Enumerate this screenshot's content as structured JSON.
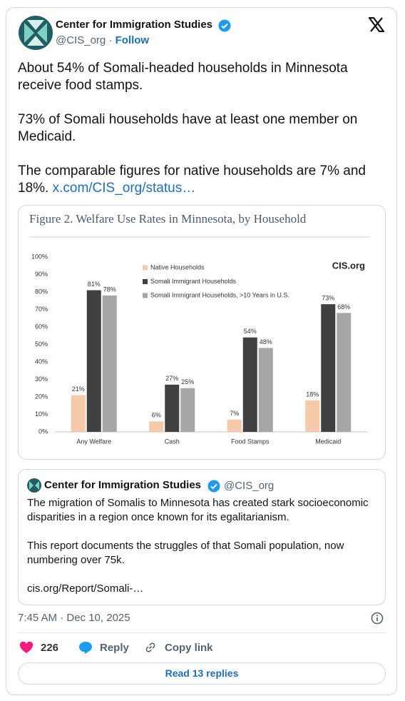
{
  "header": {
    "name": "Center for Immigration Studies",
    "handle": "@CIS_org",
    "separator": "·",
    "follow": "Follow"
  },
  "tweet": {
    "paragraphs": [
      "About 54% of Somali-headed households in Minnesota receive food stamps.",
      "73% of Somali households have at least one member on Medicaid.",
      "The comparable figures for native households are 7% and 18%."
    ],
    "link": "x.com/CIS_org/status…"
  },
  "chart_data": {
    "type": "bar",
    "title": "Figure 2. Welfare Use Rates in Minnesota, by Household",
    "watermark": "CIS.org",
    "categories": [
      "Any Welfare",
      "Cash",
      "Food Stamps",
      "Medicaid"
    ],
    "series": [
      {
        "name": "Native Households",
        "color": "#f6c9a8",
        "values": [
          21,
          6,
          7,
          18
        ],
        "value_labels": [
          "21%",
          "6%",
          "7%",
          "18%"
        ]
      },
      {
        "name": "Somali Immigrant Households",
        "color": "#404040",
        "values": [
          81,
          27,
          54,
          73
        ],
        "value_labels": [
          "81%",
          "27%",
          "54%",
          "73%"
        ]
      },
      {
        "name": "Somali Immigrant Households, >10 Years in U.S.",
        "color": "#a6a6a6",
        "values": [
          78,
          25,
          48,
          68
        ],
        "value_labels": [
          "78%",
          "25%",
          "48%",
          "68%"
        ]
      }
    ],
    "ylim": [
      0,
      100
    ],
    "yticks": [
      {
        "value": 0,
        "label": "0%"
      },
      {
        "value": 10,
        "label": "10%"
      },
      {
        "value": 20,
        "label": "20%"
      },
      {
        "value": 30,
        "label": "30%"
      },
      {
        "value": 40,
        "label": "40%"
      },
      {
        "value": 50,
        "label": "50%"
      },
      {
        "value": 60,
        "label": "60%"
      },
      {
        "value": 70,
        "label": "70%"
      },
      {
        "value": 80,
        "label": "80%"
      },
      {
        "value": 90,
        "label": "90%"
      },
      {
        "value": 100,
        "label": "100%"
      }
    ],
    "grid": false,
    "legend": "top"
  },
  "quote": {
    "name": "Center for Immigration Studies",
    "handle": "@CIS_org",
    "paragraphs": [
      "The migration of Somalis to Minnesota has created stark socioeconomic disparities in a region once known for its egalitarianism.",
      "This report documents the struggles of that Somali population, now numbering over 75k."
    ],
    "link": "cis.org/Report/Somali-…"
  },
  "footer": {
    "timestamp": "7:45 AM · Dec 10, 2025",
    "likes": 226,
    "reply": "Reply",
    "copy_link": "Copy link",
    "read_replies": "Read 13 replies"
  }
}
